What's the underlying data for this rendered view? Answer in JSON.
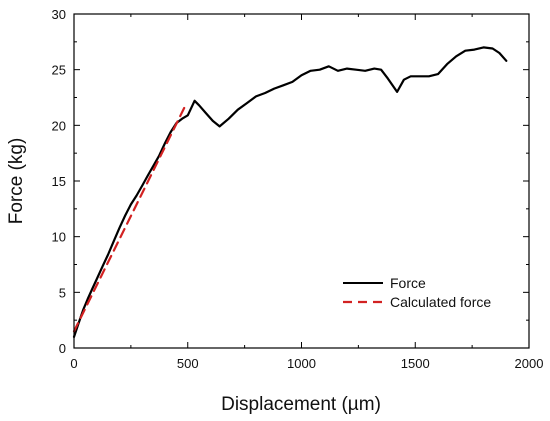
{
  "chart_data": {
    "type": "line",
    "title": "",
    "xlabel": "Displacement (µm)",
    "ylabel": "Force (kg)",
    "xlim": [
      0,
      2000
    ],
    "ylim": [
      0,
      30
    ],
    "x_ticks": [
      0,
      500,
      1000,
      1500,
      2000
    ],
    "y_ticks": [
      0,
      5,
      10,
      15,
      20,
      25,
      30
    ],
    "grid": false,
    "legend_position": "bottom-right",
    "series": [
      {
        "name": "Force",
        "color": "#000000",
        "line_style": "solid",
        "points": [
          [
            0,
            1.0
          ],
          [
            20,
            2.2
          ],
          [
            40,
            3.4
          ],
          [
            60,
            4.4
          ],
          [
            80,
            5.3
          ],
          [
            100,
            6.2
          ],
          [
            125,
            7.3
          ],
          [
            150,
            8.4
          ],
          [
            175,
            9.6
          ],
          [
            200,
            10.8
          ],
          [
            225,
            11.9
          ],
          [
            250,
            12.9
          ],
          [
            275,
            13.7
          ],
          [
            300,
            14.6
          ],
          [
            325,
            15.5
          ],
          [
            350,
            16.4
          ],
          [
            375,
            17.3
          ],
          [
            400,
            18.4
          ],
          [
            425,
            19.4
          ],
          [
            450,
            20.2
          ],
          [
            475,
            20.6
          ],
          [
            500,
            20.9
          ],
          [
            530,
            22.2
          ],
          [
            550,
            21.8
          ],
          [
            580,
            21.1
          ],
          [
            610,
            20.4
          ],
          [
            640,
            19.9
          ],
          [
            680,
            20.6
          ],
          [
            720,
            21.4
          ],
          [
            760,
            22.0
          ],
          [
            800,
            22.6
          ],
          [
            840,
            22.9
          ],
          [
            880,
            23.3
          ],
          [
            920,
            23.6
          ],
          [
            960,
            23.9
          ],
          [
            1000,
            24.5
          ],
          [
            1040,
            24.9
          ],
          [
            1080,
            25.0
          ],
          [
            1120,
            25.3
          ],
          [
            1160,
            24.9
          ],
          [
            1200,
            25.1
          ],
          [
            1240,
            25.0
          ],
          [
            1280,
            24.9
          ],
          [
            1320,
            25.1
          ],
          [
            1350,
            25.0
          ],
          [
            1380,
            24.2
          ],
          [
            1420,
            23.0
          ],
          [
            1450,
            24.1
          ],
          [
            1480,
            24.4
          ],
          [
            1520,
            24.4
          ],
          [
            1560,
            24.4
          ],
          [
            1600,
            24.6
          ],
          [
            1640,
            25.5
          ],
          [
            1680,
            26.2
          ],
          [
            1720,
            26.7
          ],
          [
            1760,
            26.8
          ],
          [
            1800,
            27.0
          ],
          [
            1840,
            26.9
          ],
          [
            1870,
            26.5
          ],
          [
            1900,
            25.8
          ]
        ]
      },
      {
        "name": "Calculated force",
        "color": "#d22222",
        "line_style": "dashed",
        "points": [
          [
            0,
            1.5
          ],
          [
            495,
            22.0
          ]
        ]
      }
    ]
  }
}
